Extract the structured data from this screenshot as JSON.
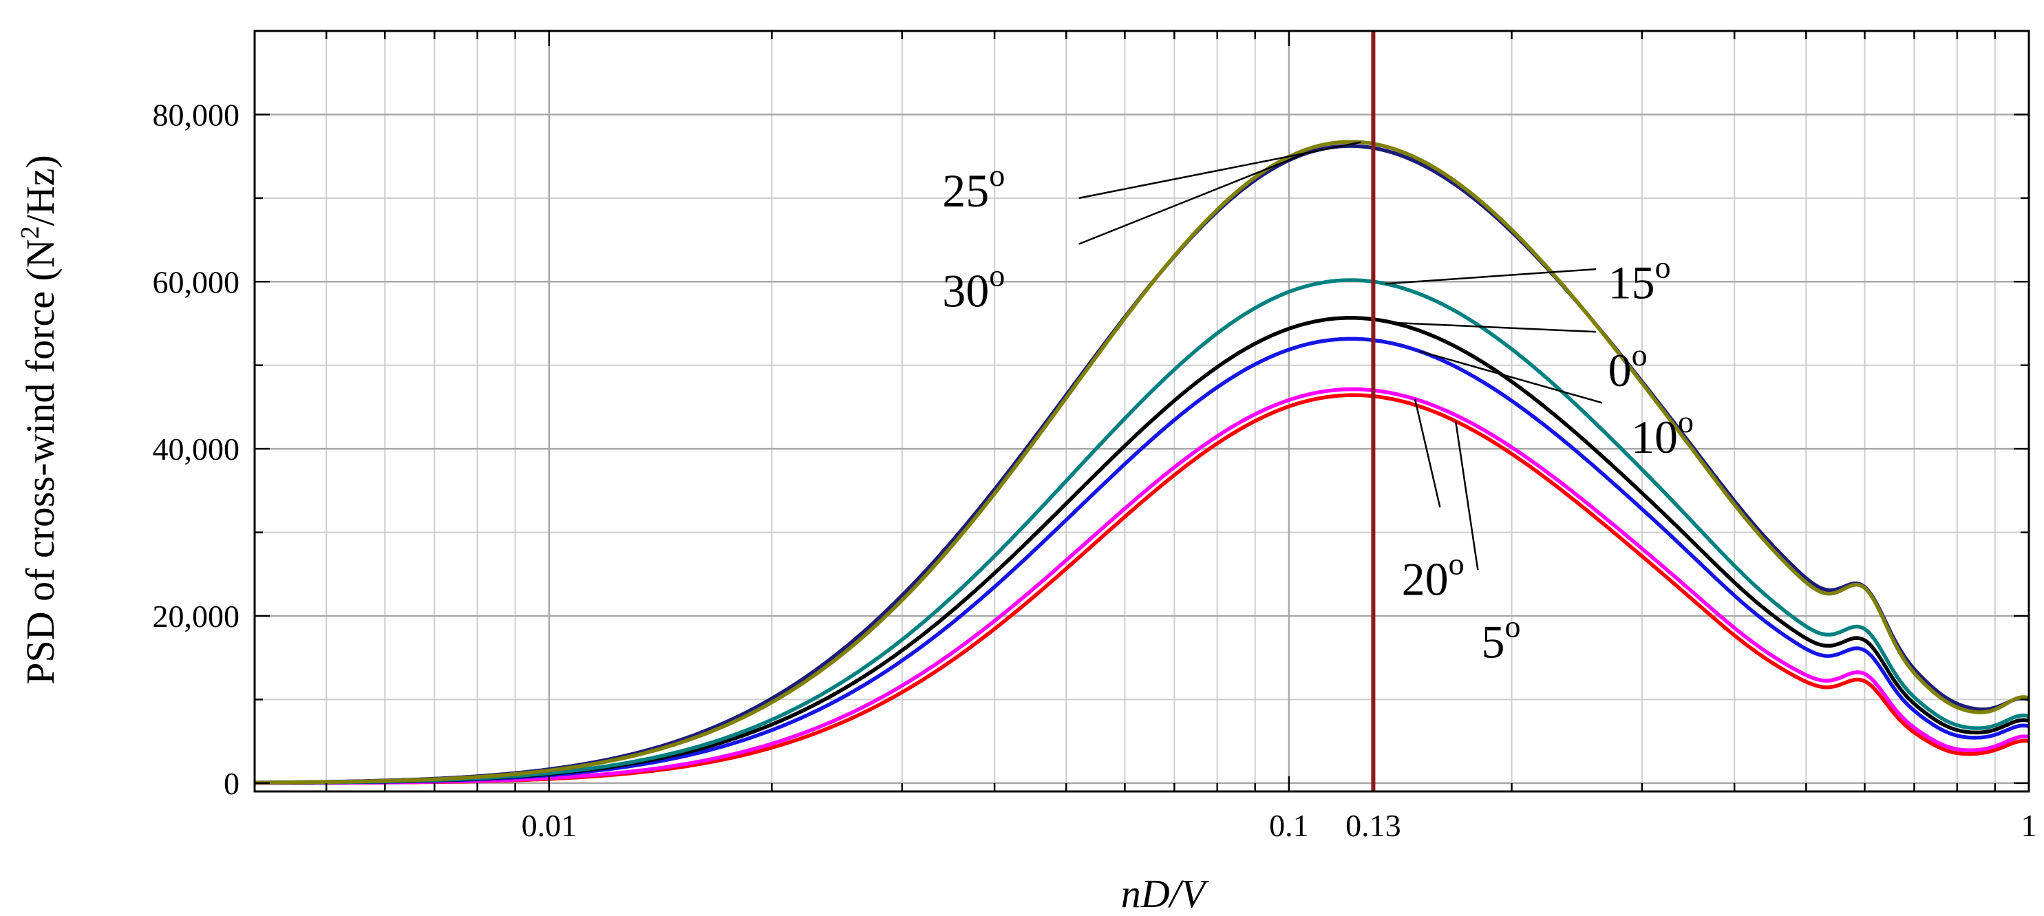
{
  "chart_data": {
    "type": "line",
    "title": "",
    "xlabel": "nD/V",
    "ylabel": "PSD of cross-wind force (N²/Hz)",
    "x_scale": "log",
    "xlim": [
      0.004,
      1
    ],
    "ylim": [
      -1000,
      90000
    ],
    "grid": true,
    "x_ticks": [
      {
        "value": 0.01,
        "label": "0.01"
      },
      {
        "value": 0.1,
        "label": "0.1"
      },
      {
        "value": 0.13,
        "label": "0.13"
      },
      {
        "value": 1,
        "label": "1"
      }
    ],
    "y_ticks": [
      {
        "value": 0,
        "label": "0"
      },
      {
        "value": 20000,
        "label": "20,000"
      },
      {
        "value": 40000,
        "label": "40,000"
      },
      {
        "value": 60000,
        "label": "60,000"
      },
      {
        "value": 80000,
        "label": "80,000"
      }
    ],
    "vertical_line": {
      "x": 0.13,
      "color": "#8b1a1a"
    },
    "peak_x": 0.13,
    "series": [
      {
        "name": "25°",
        "color": "#808000",
        "peak": 76500,
        "w": 0.395,
        "bump1": 5700,
        "bump2": 4300,
        "label_x": 0.052,
        "label_y": 70000,
        "label_target_x": 0.125
      },
      {
        "name": "30°",
        "color": "#1c1c7a",
        "peak": 76000,
        "w": 0.4,
        "bump1": 5300,
        "bump2": 3800,
        "label_x": 0.052,
        "label_y": 64500,
        "label_target_x": 0.105
      },
      {
        "name": "15°",
        "color": "#008080",
        "peak": 60000,
        "w": 0.395,
        "bump1": 4600,
        "bump2": 3400,
        "label_x": 0.26,
        "label_y": 61500,
        "label_target_x": 0.135
      },
      {
        "name": "0°",
        "color": "#000000",
        "peak": 55500,
        "w": 0.395,
        "bump1": 4300,
        "bump2": 3200,
        "label_x": 0.26,
        "label_y": 54000,
        "label_target_x": 0.138
      },
      {
        "name": "10°",
        "color": "#1515e6",
        "peak": 53000,
        "w": 0.39,
        "bump1": 4100,
        "bump2": 3000,
        "label_x": 0.265,
        "label_y": 45500,
        "label_target_x": 0.15
      },
      {
        "name": "20°",
        "color": "#ff00ff",
        "peak": 47000,
        "w": 0.375,
        "bump1": 3800,
        "bump2": 2800,
        "label_x": 0.16,
        "label_y": 33000,
        "label_target_x": 0.148
      },
      {
        "name": "5°",
        "color": "#ff0000",
        "peak": 46300,
        "w": 0.368,
        "bump1": 3600,
        "bump2": 2600,
        "label_x": 0.18,
        "label_y": 25500,
        "label_target_x": 0.168
      }
    ],
    "annotations": [
      {
        "text": "25",
        "unit": "o",
        "x": 0.034,
        "y": 69000
      },
      {
        "text": "30",
        "unit": "o",
        "x": 0.034,
        "y": 57000
      },
      {
        "text": "15",
        "unit": "o",
        "x": 0.27,
        "y": 58000
      },
      {
        "text": "0",
        "unit": "o",
        "x": 0.27,
        "y": 47500
      },
      {
        "text": "10",
        "unit": "o",
        "x": 0.29,
        "y": 39500
      },
      {
        "text": "20",
        "unit": "o",
        "x": 0.142,
        "y": 22500
      },
      {
        "text": "5",
        "unit": "o",
        "x": 0.182,
        "y": 15000
      }
    ]
  }
}
